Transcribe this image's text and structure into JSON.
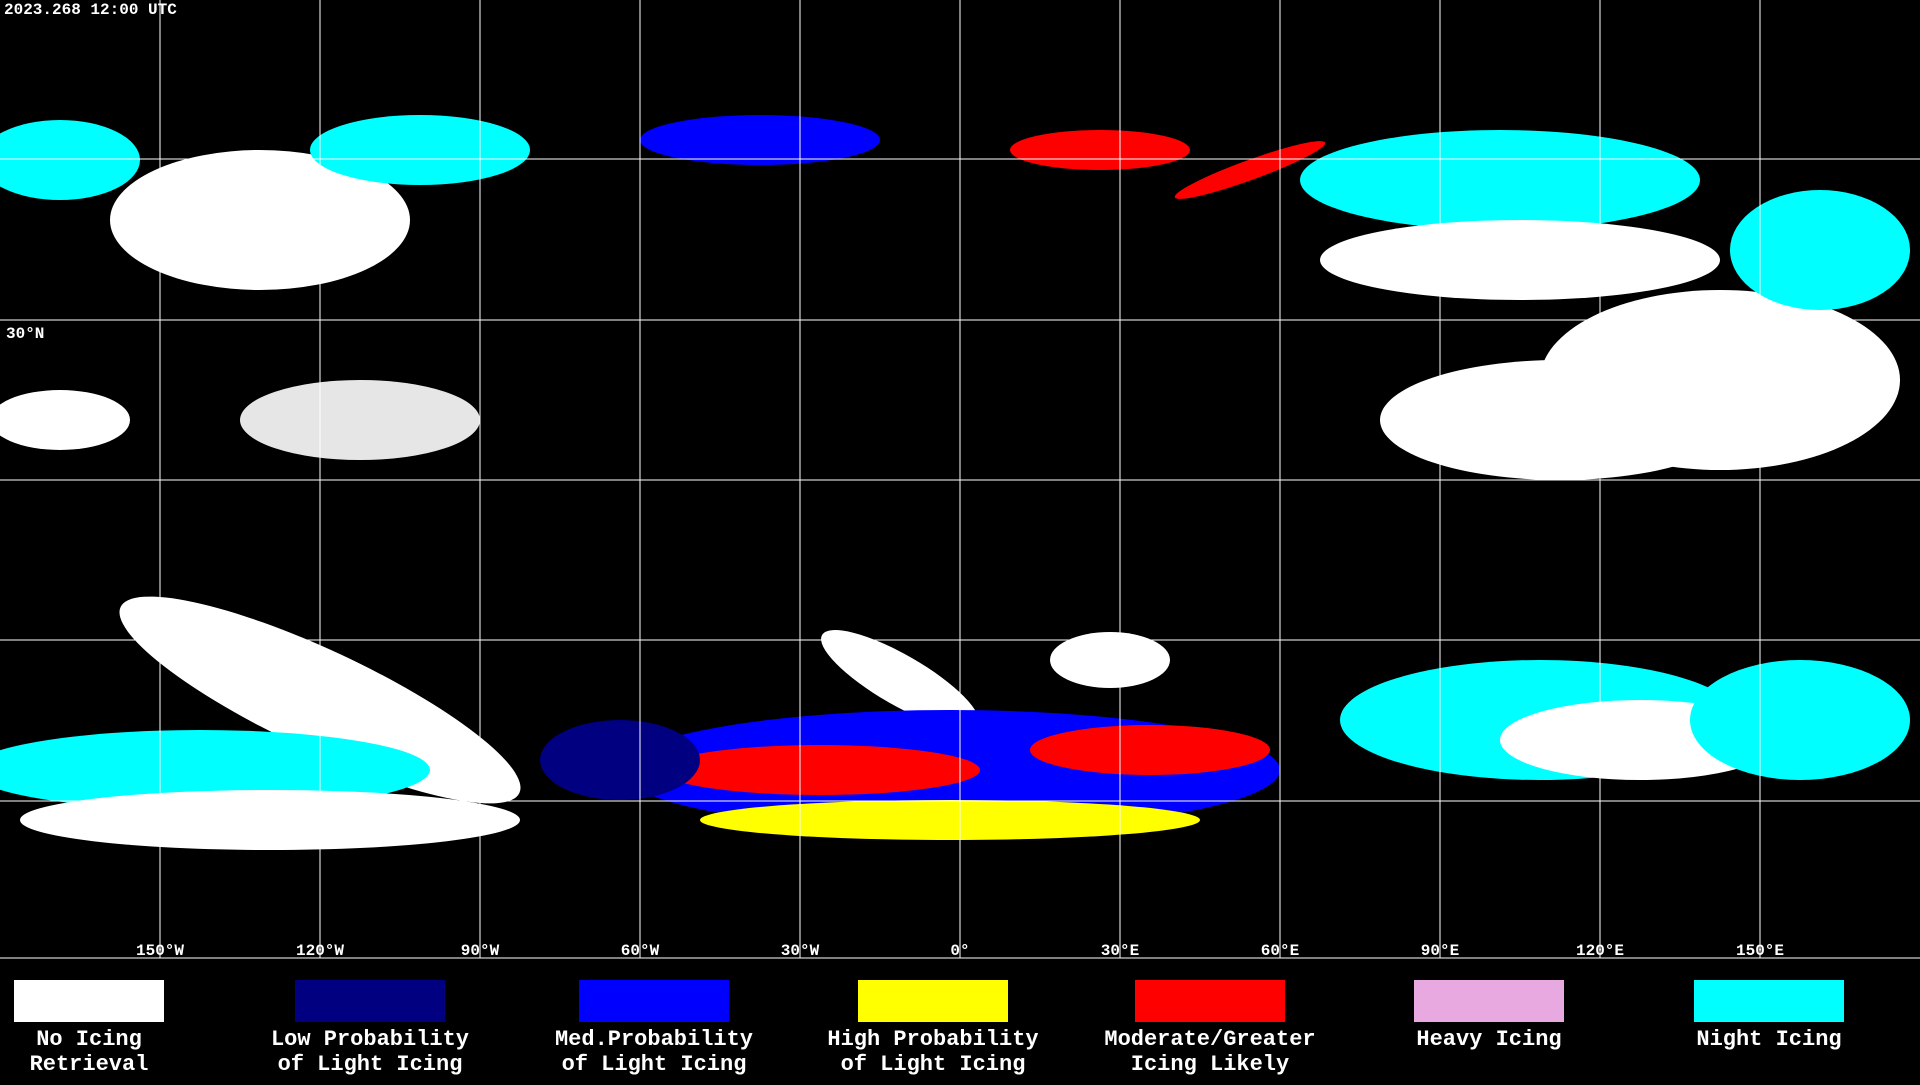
{
  "header": {
    "timestamp": "2023.268 12:00 UTC"
  },
  "map": {
    "lon_labels": [
      "150°W",
      "120°W",
      "90°W",
      "60°W",
      "30°W",
      "0°",
      "30°E",
      "60°E",
      "90°E",
      "120°E",
      "150°E"
    ],
    "lat_labels": [
      "30°N"
    ]
  },
  "legend": [
    {
      "lines": [
        "No Icing",
        "Retrieval"
      ],
      "color": "#ffffff"
    },
    {
      "lines": [
        "Low Probability",
        "of Light Icing"
      ],
      "color": "#000080"
    },
    {
      "lines": [
        "Med.Probability",
        "of Light Icing"
      ],
      "color": "#0000ff"
    },
    {
      "lines": [
        "High Probability",
        "of Light Icing"
      ],
      "color": "#ffff00"
    },
    {
      "lines": [
        "Moderate/Greater",
        "Icing Likely"
      ],
      "color": "#ff0000"
    },
    {
      "lines": [
        "Heavy Icing"
      ],
      "color": "#e8a8e0"
    },
    {
      "lines": [
        "Night Icing"
      ],
      "color": "#00ffff"
    }
  ]
}
